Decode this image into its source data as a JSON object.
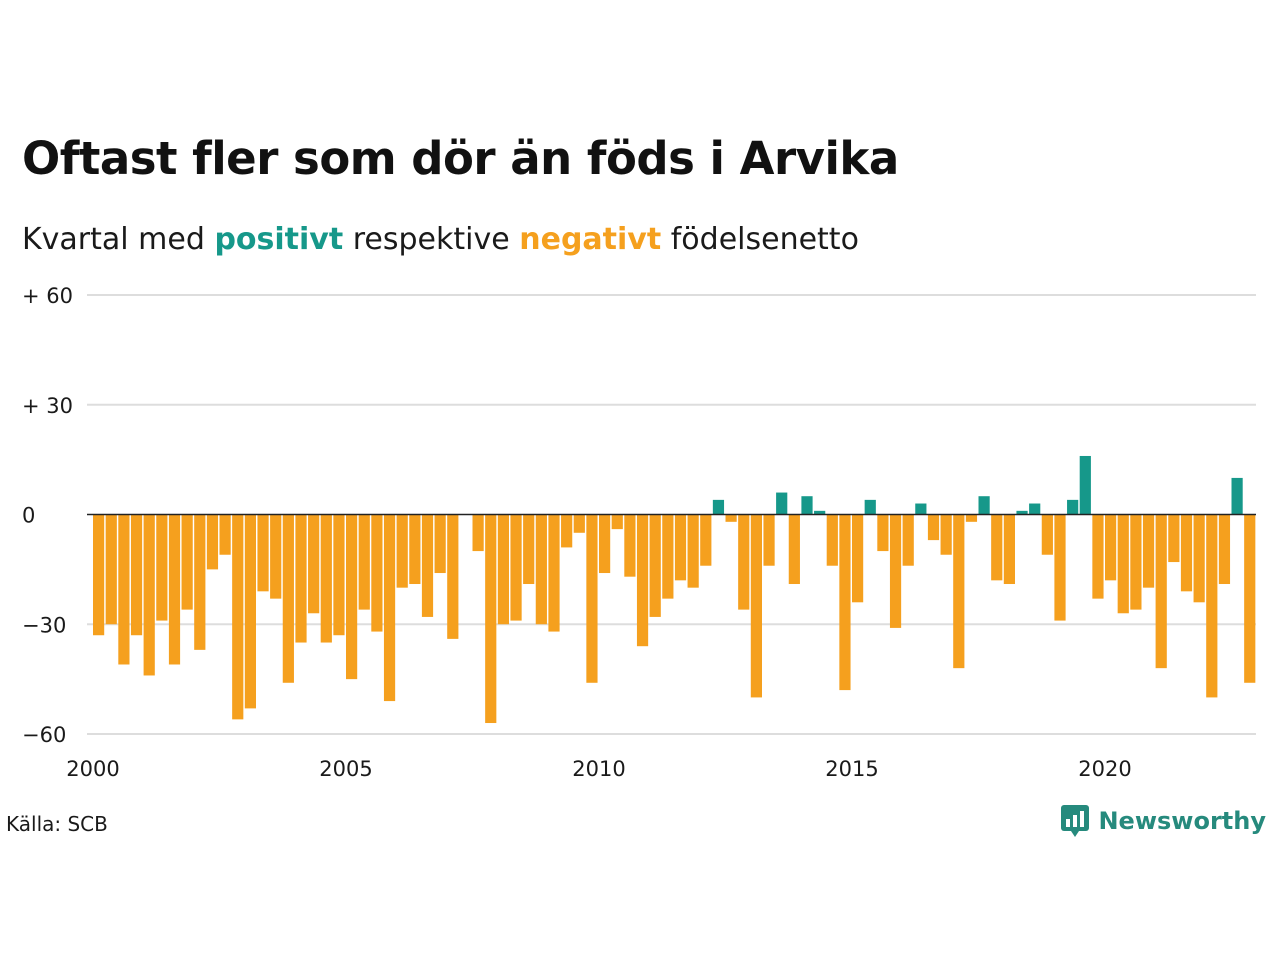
{
  "header": {
    "title": "Oftast fler som dör än föds i Arvika",
    "subtitle_prefix": "Kvartal med",
    "subtitle_positive": "positivt",
    "subtitle_middle": "respektive",
    "subtitle_negative": "negativt",
    "subtitle_suffix": "födelsenetto"
  },
  "footer": {
    "source": "Källa: SCB",
    "brand": "Newsworthy"
  },
  "colors": {
    "positive": "#16988a",
    "negative": "#f5a01e",
    "brand": "#268a7d",
    "grid": "#dddddd",
    "zero_line": "#222222"
  },
  "chart_data": {
    "type": "bar",
    "ylim": [
      -60,
      60
    ],
    "y_ticks": [
      60,
      30,
      0,
      -30,
      -60
    ],
    "y_tick_labels": [
      "+ 60",
      "+ 30",
      "0",
      "−30",
      "−60"
    ],
    "x_tick_labels": [
      "2000",
      "2005",
      "2010",
      "2015",
      "2020"
    ],
    "x_start_year": 2000,
    "periods_per_year": 4,
    "grid": true,
    "values": [
      -33,
      -30,
      -41,
      -33,
      -44,
      -29,
      -41,
      -26,
      -37,
      -15,
      -11,
      -56,
      -53,
      -21,
      -23,
      -46,
      -35,
      -27,
      -35,
      -33,
      -45,
      -26,
      -32,
      -51,
      -20,
      -19,
      -28,
      -16,
      -34,
      0,
      -10,
      -57,
      -30,
      -29,
      -19,
      -30,
      -32,
      -9,
      -5,
      -46,
      -16,
      -4,
      -17,
      -36,
      -28,
      -23,
      -18,
      -20,
      -14,
      4,
      -2,
      -26,
      -50,
      -14,
      6,
      -19,
      5,
      1,
      -14,
      -48,
      -24,
      4,
      -10,
      -31,
      -14,
      3,
      -7,
      -11,
      -42,
      -2,
      5,
      -18,
      -19,
      1,
      3,
      -11,
      -29,
      4,
      16,
      -23,
      -18,
      -27,
      -26,
      -20,
      -42,
      -13,
      -21,
      -24,
      -50,
      -19,
      10,
      -46
    ]
  }
}
